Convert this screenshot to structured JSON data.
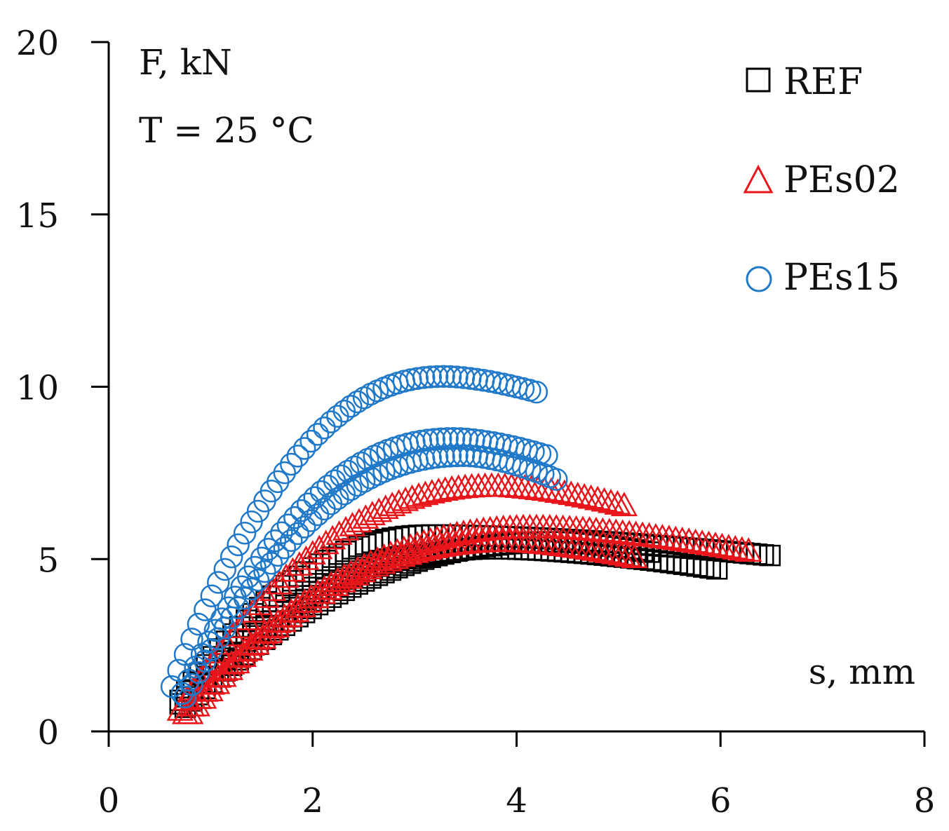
{
  "chart_data": {
    "type": "scatter",
    "title": "",
    "ylabel": "F, kN",
    "xlabel": "s, mm",
    "annotation": "T = 25 °C",
    "xlim": [
      0,
      8
    ],
    "ylim": [
      0,
      20
    ],
    "xticks": [
      "0",
      "2",
      "4",
      "6",
      "8"
    ],
    "yticks": [
      "0",
      "5",
      "10",
      "15",
      "20"
    ],
    "legend_position": "top-right",
    "series": [
      {
        "name": "REF",
        "marker": "square",
        "color": "#000000",
        "curves": [
          {
            "s0": 0.7,
            "f0": 0.9,
            "s_peak": 3.2,
            "f_peak": 5.7,
            "s_end": 6.5,
            "f_end": 5.1
          },
          {
            "s0": 0.7,
            "f0": 0.8,
            "s_peak": 3.8,
            "f_peak": 5.3,
            "s_end": 6.0,
            "f_end": 4.7
          },
          {
            "s0": 0.75,
            "f0": 0.7,
            "s_peak": 4.4,
            "f_peak": 5.5,
            "s_end": 5.3,
            "f_end": 5.2
          }
        ]
      },
      {
        "name": "PEs02",
        "marker": "triangle",
        "color": "#e8161b",
        "curves": [
          {
            "s0": 0.7,
            "f0": 0.6,
            "s_peak": 3.8,
            "f_peak": 7.1,
            "s_end": 5.1,
            "f_end": 6.5
          },
          {
            "s0": 0.75,
            "f0": 0.5,
            "s_peak": 4.2,
            "f_peak": 5.9,
            "s_end": 6.3,
            "f_end": 5.2
          },
          {
            "s0": 0.8,
            "f0": 0.5,
            "s_peak": 3.9,
            "f_peak": 5.5,
            "s_end": 5.2,
            "f_end": 5.0
          }
        ]
      },
      {
        "name": "PEs15",
        "marker": "circle",
        "color": "#1f78c8",
        "curves": [
          {
            "s0": 0.62,
            "f0": 1.3,
            "s_peak": 3.3,
            "f_peak": 10.3,
            "s_end": 4.25,
            "f_end": 9.8
          },
          {
            "s0": 0.72,
            "f0": 1.1,
            "s_peak": 3.4,
            "f_peak": 8.5,
            "s_end": 4.3,
            "f_end": 8.0
          },
          {
            "s0": 0.75,
            "f0": 1.0,
            "s_peak": 3.5,
            "f_peak": 8.0,
            "s_end": 4.4,
            "f_end": 7.3
          }
        ]
      }
    ]
  }
}
